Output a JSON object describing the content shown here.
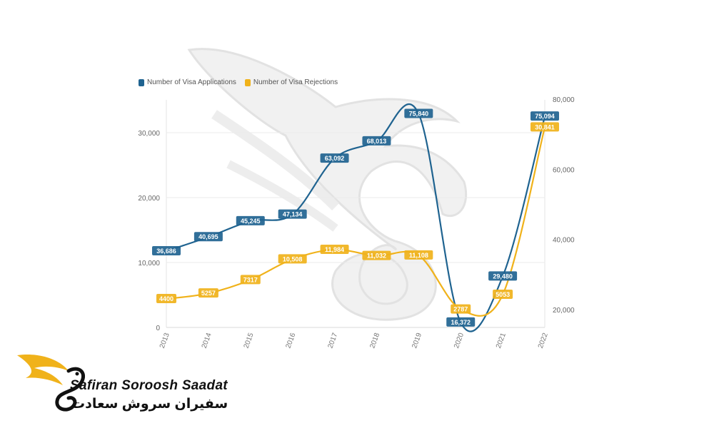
{
  "chart_data": {
    "type": "line",
    "categories": [
      "2013",
      "2014",
      "2015",
      "2016",
      "2017",
      "2018",
      "2019",
      "2020",
      "2021",
      "2022"
    ],
    "series": [
      {
        "name": "Number of Visa Applications",
        "axis": "right",
        "color": "#1f6390",
        "values": [
          36686,
          40695,
          45245,
          47134,
          63092,
          68013,
          75840,
          16372,
          29480,
          75094
        ],
        "labels": [
          "36,686",
          "40,695",
          "45,245",
          "47,134",
          "63,092",
          "68,013",
          "75,840",
          "16,372",
          "29,480",
          "75,094"
        ]
      },
      {
        "name": "Number of Visa Rejections",
        "axis": "left",
        "color": "#f0b21a",
        "values": [
          4400,
          5257,
          7317,
          10508,
          11984,
          11032,
          11108,
          2787,
          5053,
          30841
        ],
        "labels": [
          "4400",
          "5257",
          "7317",
          "10,508",
          "11,984",
          "11,032",
          "11,108",
          "2787",
          "5053",
          "30,841"
        ]
      }
    ],
    "y_left": {
      "ticks": [
        0,
        10000,
        20000,
        30000
      ],
      "tick_labels": [
        "0",
        "10,000",
        "20,000",
        "30,000"
      ],
      "range": [
        0,
        35000
      ]
    },
    "y_right": {
      "ticks": [
        20000,
        40000,
        60000,
        80000
      ],
      "tick_labels": [
        "20,000",
        "40,000",
        "60,000",
        "80,000"
      ],
      "range": [
        15000,
        80000
      ]
    },
    "grid": true,
    "legend": "top-left"
  },
  "watermark": {
    "brand_en": "Safiran Soroosh Saadat",
    "brand_fa": "سفیران سروش سعادت"
  }
}
